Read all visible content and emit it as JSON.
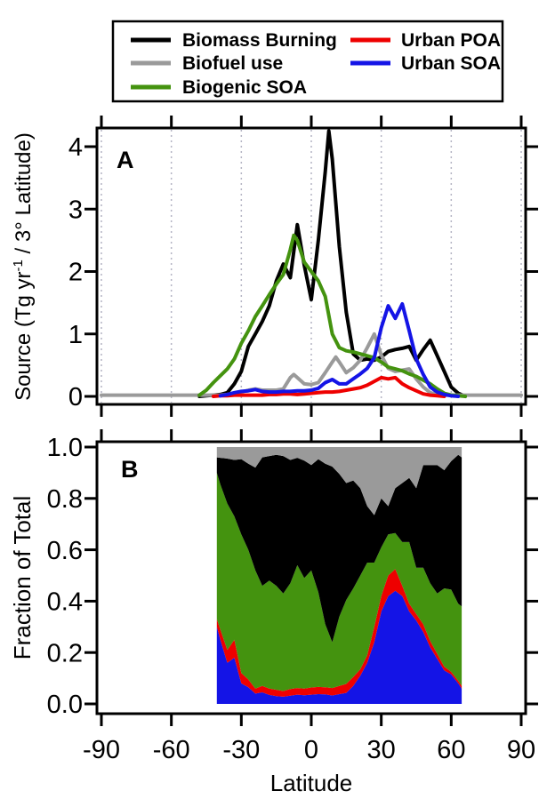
{
  "figure": {
    "background": "#ffffff",
    "frame_color": "#000000",
    "gridline_color": "#b4b4c4",
    "legend": {
      "entries": [
        {
          "label": "Biomass Burning",
          "color": "#000000"
        },
        {
          "label": "Biofuel use",
          "color": "#9a9a9a"
        },
        {
          "label": "Biogenic SOA",
          "color": "#44930f"
        },
        {
          "label": "Urban POA",
          "color": "#ee0000"
        },
        {
          "label": "Urban SOA",
          "color": "#1414e6"
        }
      ]
    },
    "x_axis": {
      "label": "Latitude",
      "ticks": [
        -90,
        -60,
        -30,
        0,
        30,
        60,
        90
      ],
      "tick_labels": [
        "-90",
        "-60",
        "-30",
        "0",
        "30",
        "60",
        "90"
      ]
    },
    "panel_a": {
      "letter": "A",
      "y_label_prefix": "Source (Tg yr",
      "y_label_sup": "-1",
      "y_label_suffix": " / 3° Latitude)",
      "y_ticks": [
        0,
        1,
        2,
        3,
        4
      ],
      "y_tick_labels": [
        "0",
        "1",
        "2",
        "3",
        "4"
      ]
    },
    "panel_b": {
      "letter": "B",
      "y_label": "Fraction of Total",
      "y_ticks": [
        0.0,
        0.2,
        0.4,
        0.6,
        0.8,
        1.0
      ],
      "y_tick_labels": [
        "0.0",
        "0.2",
        "0.4",
        "0.6",
        "0.8",
        "1.0"
      ]
    }
  },
  "chart_data": [
    {
      "id": "A",
      "type": "line",
      "panel_letter": "A",
      "xlabel": "Latitude",
      "ylabel": "Source (Tg yr-1 / 3deg Latitude)",
      "xlim": [
        -92,
        92
      ],
      "ylim": [
        -0.13,
        4.3
      ],
      "x_ticks": [
        -90,
        -60,
        -30,
        0,
        30,
        60,
        90
      ],
      "y_ticks": [
        0,
        1,
        2,
        3,
        4
      ],
      "grid": "vertical-dotted-at-major-ticks",
      "legend_position": "above-figure",
      "series": [
        {
          "name": "Biomass Burning",
          "color": "#000000",
          "lats": [
            -48,
            -45,
            -42,
            -39,
            -36,
            -33,
            -30,
            -27,
            -24,
            -21,
            -18,
            -15,
            -12,
            -9,
            -6,
            -3,
            0,
            3,
            6,
            7.5,
            9,
            12,
            15,
            18,
            21,
            24,
            27,
            30,
            33,
            36,
            39,
            42,
            45,
            48,
            51,
            54,
            57,
            60,
            63,
            66
          ],
          "values": [
            0,
            0.01,
            0.02,
            0.03,
            0.06,
            0.2,
            0.4,
            0.8,
            1.0,
            1.2,
            1.45,
            1.85,
            2.12,
            1.9,
            2.75,
            2.1,
            1.55,
            2.5,
            3.6,
            4.25,
            3.8,
            2.4,
            1.35,
            0.68,
            0.58,
            0.6,
            0.58,
            0.63,
            0.72,
            0.75,
            0.77,
            0.8,
            0.58,
            0.75,
            0.9,
            0.65,
            0.4,
            0.15,
            0.05,
            0
          ]
        },
        {
          "name": "Biofuel use",
          "color": "#9a9a9a",
          "lats": [
            -90,
            -51,
            -48,
            -45,
            -42,
            -39,
            -36,
            -33,
            -30,
            -27,
            -24,
            -21,
            -18,
            -15,
            -12,
            -9,
            -7.5,
            -6,
            -3,
            0,
            3,
            6,
            9,
            10.5,
            12,
            15,
            18,
            21,
            24,
            27,
            30,
            33,
            36,
            39,
            42,
            45,
            48,
            51,
            54,
            57,
            60,
            63,
            66,
            90
          ],
          "values": [
            0.02,
            0.02,
            0.02,
            0.02,
            0.02,
            0.02,
            0.03,
            0.05,
            0.07,
            0.1,
            0.12,
            0.1,
            0.1,
            0.1,
            0.12,
            0.3,
            0.35,
            0.3,
            0.2,
            0.19,
            0.22,
            0.38,
            0.55,
            0.63,
            0.55,
            0.38,
            0.46,
            0.58,
            0.78,
            1.0,
            0.66,
            0.45,
            0.4,
            0.42,
            0.44,
            0.28,
            0.15,
            0.06,
            0.03,
            0.02,
            0.02,
            0.02,
            0.02,
            0.02
          ]
        },
        {
          "name": "Biogenic SOA",
          "color": "#44930f",
          "lats": [
            -48,
            -45,
            -42,
            -39,
            -36,
            -33,
            -30,
            -27,
            -24,
            -21,
            -18,
            -15,
            -12,
            -9,
            -7.5,
            -6,
            -3,
            0,
            3,
            6,
            9,
            12,
            15,
            18,
            21,
            24,
            27,
            30,
            33,
            36,
            39,
            42,
            45,
            48,
            51,
            54,
            57,
            60,
            63,
            66
          ],
          "values": [
            0.02,
            0.1,
            0.22,
            0.33,
            0.44,
            0.6,
            0.85,
            1.05,
            1.28,
            1.45,
            1.63,
            1.8,
            1.95,
            2.35,
            2.58,
            2.5,
            2.15,
            2.0,
            1.85,
            1.6,
            1.0,
            0.78,
            0.73,
            0.71,
            0.68,
            0.65,
            0.62,
            0.55,
            0.47,
            0.44,
            0.41,
            0.36,
            0.32,
            0.26,
            0.2,
            0.12,
            0.05,
            0.02,
            0.01,
            0
          ]
        },
        {
          "name": "Urban POA",
          "color": "#ee0000",
          "lats": [
            -42,
            -39,
            -36,
            -33,
            -30,
            -27,
            -24,
            -21,
            -18,
            -15,
            -12,
            -9,
            -6,
            -3,
            0,
            3,
            6,
            9,
            12,
            15,
            18,
            21,
            24,
            27,
            30,
            33,
            36,
            39,
            42,
            45,
            48,
            51,
            54,
            57
          ],
          "values": [
            0,
            0.01,
            0.01,
            0.02,
            0.02,
            0.02,
            0.02,
            0.02,
            0.03,
            0.03,
            0.04,
            0.04,
            0.03,
            0.04,
            0.05,
            0.06,
            0.07,
            0.07,
            0.08,
            0.1,
            0.12,
            0.14,
            0.18,
            0.24,
            0.3,
            0.28,
            0.3,
            0.2,
            0.14,
            0.09,
            0.04,
            0.02,
            0.01,
            0
          ]
        },
        {
          "name": "Urban SOA",
          "color": "#1414e6",
          "lats": [
            -39,
            -36,
            -33,
            -30,
            -27,
            -24,
            -21,
            -18,
            -15,
            -12,
            -9,
            -6,
            -3,
            0,
            3,
            6,
            9,
            12,
            15,
            18,
            21,
            24,
            27,
            30,
            33,
            36,
            39,
            42,
            45,
            48,
            51,
            54,
            57,
            60,
            63
          ],
          "values": [
            0.01,
            0.03,
            0.06,
            0.08,
            0.09,
            0.11,
            0.08,
            0.07,
            0.07,
            0.08,
            0.08,
            0.09,
            0.09,
            0.1,
            0.13,
            0.22,
            0.27,
            0.2,
            0.2,
            0.28,
            0.36,
            0.45,
            0.62,
            1.1,
            1.45,
            1.25,
            1.48,
            1.05,
            0.6,
            0.35,
            0.15,
            0.07,
            0.03,
            0.01,
            0
          ]
        }
      ]
    },
    {
      "id": "B",
      "type": "stacked_area",
      "panel_letter": "B",
      "xlabel": "Latitude",
      "ylabel": "Fraction of Total",
      "xlim": [
        -92,
        92
      ],
      "ylim": [
        -0.04,
        1.02
      ],
      "x_ticks": [
        -90,
        -60,
        -30,
        0,
        30,
        60,
        90
      ],
      "y_ticks": [
        0.0,
        0.2,
        0.4,
        0.6,
        0.8,
        1.0
      ],
      "data_lat_range": [
        -40.5,
        64.5
      ],
      "stack_order_bottom_to_top": [
        "Urban SOA",
        "Urban POA",
        "Biogenic SOA",
        "Biomass Burning",
        "Biofuel use"
      ],
      "lats": [
        -40.5,
        -39,
        -36,
        -33,
        -30,
        -27,
        -24,
        -21,
        -18,
        -15,
        -12,
        -9,
        -6,
        -3,
        0,
        3,
        6,
        9,
        12,
        15,
        18,
        21,
        24,
        27,
        30,
        33,
        36,
        39,
        42,
        45,
        48,
        51,
        54,
        57,
        60,
        63,
        64.5
      ],
      "cumulative_tops": {
        "urban_soa": [
          0.3,
          0.25,
          0.16,
          0.18,
          0.08,
          0.065,
          0.04,
          0.045,
          0.035,
          0.03,
          0.028,
          0.032,
          0.036,
          0.034,
          0.036,
          0.038,
          0.037,
          0.033,
          0.038,
          0.043,
          0.07,
          0.11,
          0.16,
          0.24,
          0.36,
          0.42,
          0.44,
          0.42,
          0.36,
          0.325,
          0.28,
          0.22,
          0.175,
          0.13,
          0.115,
          0.08,
          0.06
        ],
        "urban_poa": [
          0.33,
          0.29,
          0.21,
          0.25,
          0.12,
          0.095,
          0.06,
          0.07,
          0.06,
          0.055,
          0.05,
          0.058,
          0.062,
          0.06,
          0.064,
          0.066,
          0.065,
          0.062,
          0.07,
          0.078,
          0.105,
          0.135,
          0.19,
          0.3,
          0.42,
          0.5,
          0.525,
          0.46,
          0.39,
          0.35,
          0.31,
          0.245,
          0.195,
          0.145,
          0.125,
          0.09,
          0.07
        ],
        "biogenic_soa": [
          0.9,
          0.855,
          0.78,
          0.73,
          0.66,
          0.6,
          0.52,
          0.46,
          0.48,
          0.46,
          0.43,
          0.47,
          0.54,
          0.49,
          0.52,
          0.435,
          0.31,
          0.24,
          0.34,
          0.405,
          0.45,
          0.5,
          0.55,
          0.55,
          0.61,
          0.66,
          0.665,
          0.63,
          0.63,
          0.53,
          0.53,
          0.47,
          0.43,
          0.45,
          0.445,
          0.39,
          0.38
        ],
        "biomass_burning": [
          0.96,
          0.958,
          0.955,
          0.95,
          0.953,
          0.935,
          0.92,
          0.96,
          0.965,
          0.97,
          0.965,
          0.95,
          0.958,
          0.947,
          0.93,
          0.953,
          0.935,
          0.924,
          0.895,
          0.86,
          0.87,
          0.84,
          0.77,
          0.735,
          0.8,
          0.77,
          0.84,
          0.86,
          0.88,
          0.84,
          0.93,
          0.93,
          0.93,
          0.91,
          0.945,
          0.97,
          0.96
        ],
        "biofuel_use": 1.0
      }
    }
  ]
}
